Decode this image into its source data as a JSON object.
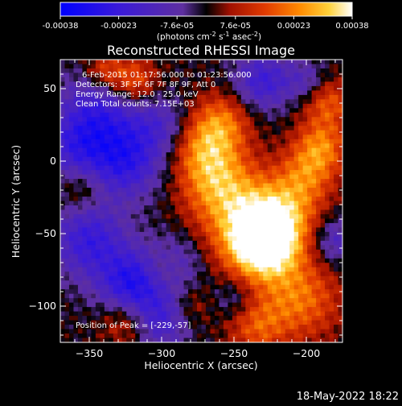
{
  "colorbar": {
    "tick_labels": [
      "-0.00038",
      "-0.00023",
      "-7.6e-05",
      "7.6e-05",
      "0.00023",
      "0.00038"
    ],
    "unit_label": "(photons cm",
    "unit_exp1": "-2",
    "unit_mid": " s",
    "unit_exp2": "-1",
    "unit_end": " asec",
    "unit_exp3": "-2",
    "unit_close": ")"
  },
  "footer": {
    "timestamp": "18-May-2022 18:22"
  },
  "chart_data": {
    "type": "heatmap",
    "title": "Reconstructed RHESSI Image",
    "xlabel": "Heliocentric X (arcsec)",
    "ylabel": "Heliocentric Y (arcsec)",
    "xlim": [
      -370,
      -175
    ],
    "ylim": [
      -125,
      70
    ],
    "x_ticks": [
      -350,
      -300,
      -250,
      -200
    ],
    "y_ticks": [
      -100,
      -50,
      0,
      50
    ],
    "x_tick_labels": [
      "−350",
      "−300",
      "−250",
      "−200"
    ],
    "y_tick_labels": [
      "−100",
      "−50",
      "0",
      "50"
    ],
    "colorbar_range": [
      -0.00038,
      0.00038
    ],
    "annotations": [
      "6-Feb-2015 01:17:56.000 to 01:23:56.000",
      "Detectors: 3F 5F 6F 7F 8F 9F, Att 0",
      "Energy Range: 12.0 - 25.0 keV",
      "Clean    Total counts: 7.15E+03"
    ],
    "peak_label": "Position of Peak = [-229,-57]",
    "peak": [
      -229,
      -57
    ],
    "peak_value": 0.00038,
    "colors": {
      "negative_low": "#0000ff",
      "negative_high": "#5e2fa0",
      "zero": "#000000",
      "positive_low": "#c81e00",
      "positive_mid": "#ff7a00",
      "positive_high": "#ffffff"
    }
  }
}
